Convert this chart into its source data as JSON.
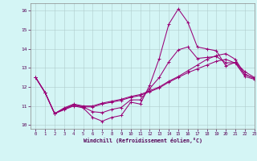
{
  "title": "",
  "xlabel": "Windchill (Refroidissement éolien,°C)",
  "ylabel": "",
  "bg_color": "#d4f5f5",
  "line_color": "#990077",
  "grid_color": "#b0cccc",
  "xlim": [
    -0.5,
    23
  ],
  "ylim": [
    9.8,
    16.4
  ],
  "xticks": [
    0,
    1,
    2,
    3,
    4,
    5,
    6,
    7,
    8,
    9,
    10,
    11,
    12,
    13,
    14,
    15,
    16,
    17,
    18,
    19,
    20,
    21,
    22,
    23
  ],
  "yticks": [
    10,
    11,
    12,
    13,
    14,
    15,
    16
  ],
  "series": [
    {
      "x": [
        0,
        1,
        2,
        3,
        4,
        5,
        6,
        7,
        8,
        9,
        10,
        11,
        12,
        13,
        14,
        15,
        16,
        17,
        18,
        19,
        20,
        21,
        22,
        23
      ],
      "y": [
        12.5,
        11.7,
        10.6,
        10.8,
        11.0,
        10.9,
        10.4,
        10.2,
        10.4,
        10.5,
        11.2,
        11.1,
        12.1,
        13.5,
        15.3,
        16.1,
        15.4,
        14.1,
        14.0,
        13.9,
        13.1,
        13.3,
        12.8,
        12.5
      ]
    },
    {
      "x": [
        0,
        1,
        2,
        3,
        4,
        5,
        6,
        7,
        8,
        9,
        10,
        11,
        12,
        13,
        14,
        15,
        16,
        17,
        18,
        19,
        20,
        21,
        22,
        23
      ],
      "y": [
        12.5,
        11.7,
        10.6,
        10.9,
        11.1,
        11.0,
        11.0,
        11.15,
        11.25,
        11.35,
        11.5,
        11.6,
        11.8,
        12.0,
        12.3,
        12.55,
        12.85,
        13.15,
        13.45,
        13.65,
        13.75,
        13.45,
        12.65,
        12.45
      ]
    },
    {
      "x": [
        0,
        1,
        2,
        3,
        4,
        5,
        6,
        7,
        8,
        9,
        10,
        11,
        12,
        13,
        14,
        15,
        16,
        17,
        18,
        19,
        20,
        21,
        22,
        23
      ],
      "y": [
        12.5,
        11.7,
        10.6,
        10.85,
        11.05,
        10.95,
        10.95,
        11.1,
        11.2,
        11.3,
        11.45,
        11.55,
        11.75,
        11.95,
        12.25,
        12.5,
        12.75,
        12.95,
        13.15,
        13.35,
        13.45,
        13.25,
        12.55,
        12.4
      ]
    },
    {
      "x": [
        0,
        1,
        2,
        3,
        4,
        5,
        6,
        7,
        8,
        9,
        10,
        11,
        12,
        13,
        14,
        15,
        16,
        17,
        18,
        19,
        20,
        21,
        22,
        23
      ],
      "y": [
        12.5,
        11.7,
        10.6,
        10.85,
        11.05,
        10.95,
        10.7,
        10.65,
        10.82,
        10.92,
        11.32,
        11.32,
        11.92,
        12.5,
        13.32,
        13.95,
        14.1,
        13.5,
        13.55,
        13.6,
        13.27,
        13.27,
        12.67,
        12.45
      ]
    }
  ]
}
